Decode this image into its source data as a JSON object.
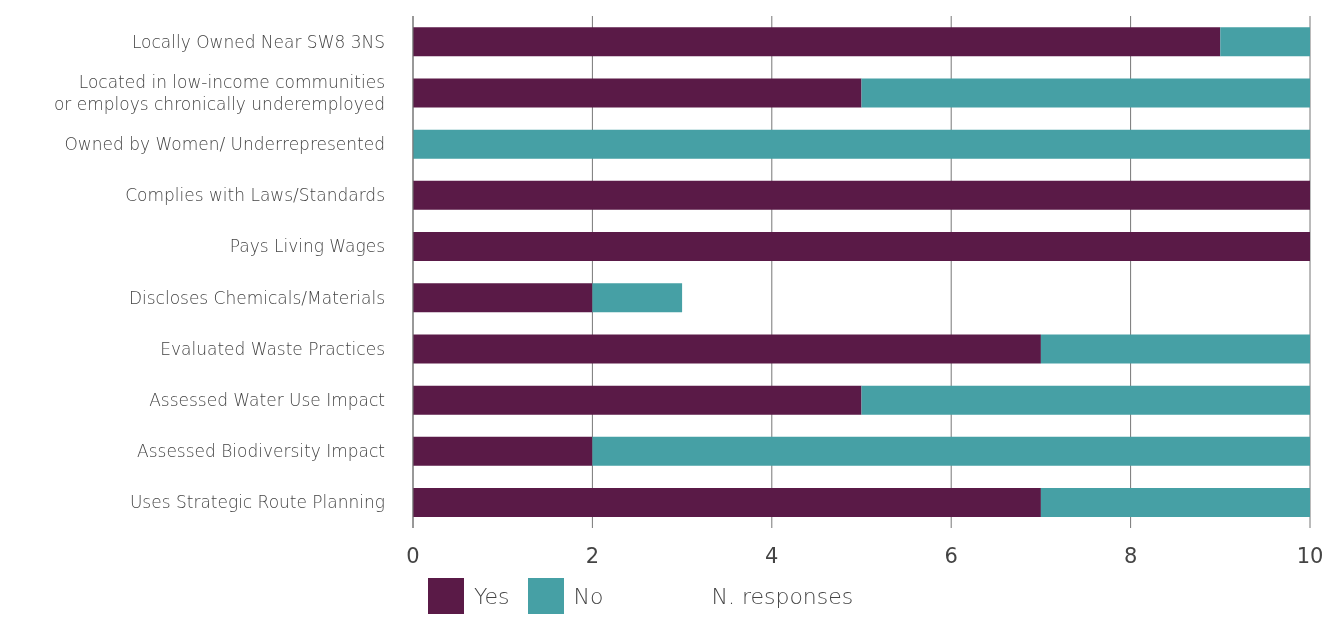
{
  "chart_data": {
    "type": "bar",
    "orientation": "horizontal",
    "stacked": true,
    "categories": [
      "Locally Owned Near SW8 3NS",
      "Located in low-income communities\nor employs chronically underemployed",
      "Owned by Women/ Underrepresented",
      "Complies with Laws/Standards",
      "Pays Living Wages",
      "Discloses Chemicals/Materials",
      "Evaluated Waste Practices",
      "Assessed Water Use Impact",
      "Assessed Biodiversity Impact",
      "Uses Strategic Route Planning"
    ],
    "series": [
      {
        "name": "Yes",
        "color": "#5a1a47",
        "values": [
          9,
          5,
          0,
          10,
          10,
          2,
          7,
          5,
          2,
          7
        ]
      },
      {
        "name": "No",
        "color": "#46a0a5",
        "values": [
          1,
          5,
          10,
          0,
          0,
          1,
          3,
          5,
          8,
          3
        ]
      }
    ],
    "xlim": [
      0,
      10
    ],
    "xticks": [
      0,
      2,
      4,
      6,
      8,
      10
    ],
    "grid": "x",
    "legend": "bottom",
    "xlabel": "N. responses"
  }
}
